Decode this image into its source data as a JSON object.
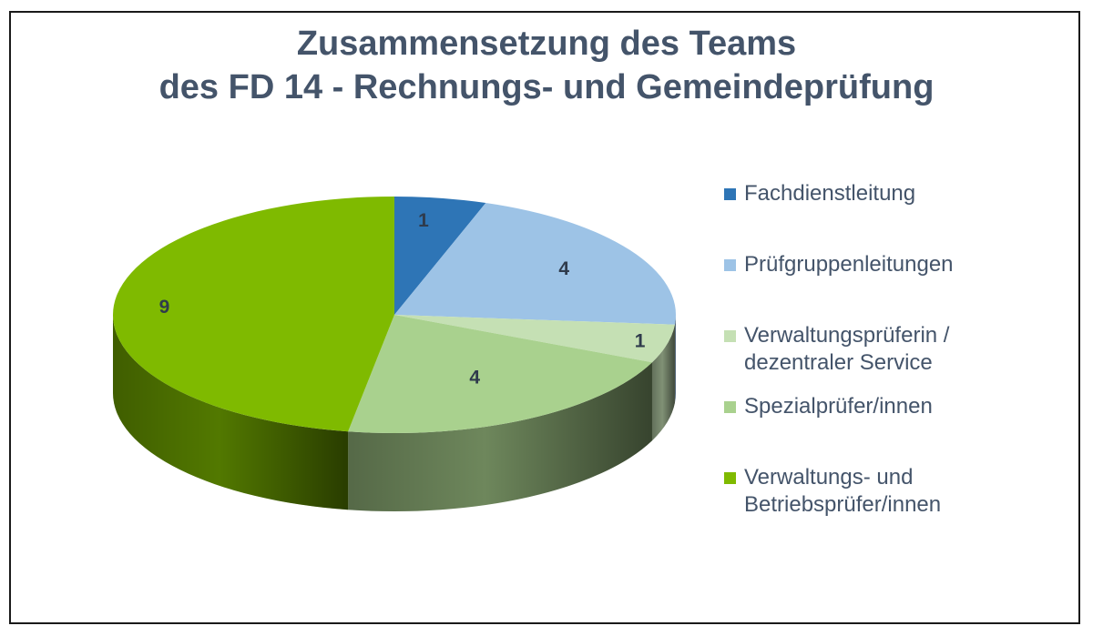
{
  "chart_data": {
    "type": "pie",
    "title": [
      "Zusammensetzung des Teams",
      "des FD 14 - Rechnungs- und Gemeindeprüfung"
    ],
    "categories": [
      "Fachdienstleitung",
      "Prüfgruppenleitungen",
      "Verwaltungsprüferin /\ndezentraler Service",
      "Spezialprüfer/innen",
      "Verwaltungs- und\nBetriebsprüfer/innen"
    ],
    "values": [
      1,
      4,
      1,
      4,
      9
    ],
    "data_labels": [
      "1",
      "4",
      "1",
      "4",
      "9"
    ],
    "colors": [
      "#2e75b6",
      "#9dc3e6",
      "#c5e0b4",
      "#a9d18e",
      "#7fba00"
    ],
    "legend_placement": "right",
    "style": "3d"
  }
}
